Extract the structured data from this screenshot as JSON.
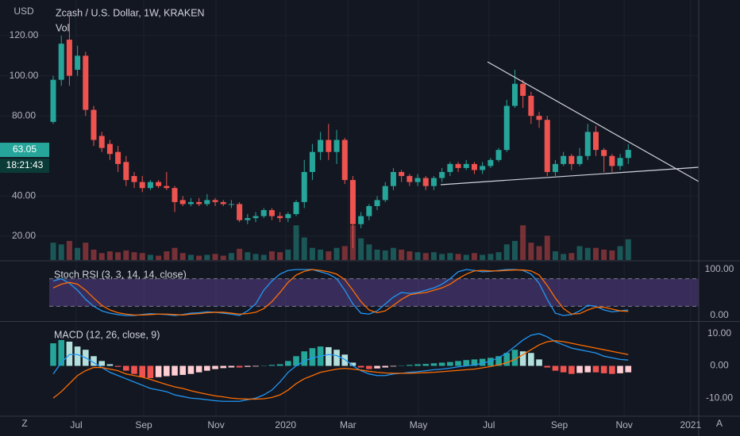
{
  "toolbar": {
    "timezone": "Z",
    "auto_scale": "A"
  },
  "chart_data": [
    {
      "type": "candlestick",
      "currency": "USD",
      "title": "Zcash / U.S. Dollar, 1W, KRAKEN",
      "volume_label": "Vol",
      "open": [
        77,
        98,
        118,
        103,
        110,
        83,
        70,
        66,
        62,
        57,
        50,
        47,
        44,
        47,
        45,
        44,
        38,
        36,
        37,
        36,
        38,
        37,
        36,
        36,
        28,
        29,
        30,
        33,
        30,
        29,
        31,
        37,
        52,
        62,
        68,
        62,
        68,
        48,
        26,
        30,
        35,
        38,
        45,
        52,
        50,
        47,
        49,
        45,
        49,
        52,
        56,
        54,
        56,
        53,
        55,
        58,
        63,
        85,
        96,
        90,
        80,
        78,
        52,
        56,
        60,
        56,
        60,
        72,
        63,
        60,
        55,
        59
      ],
      "high": [
        100,
        120,
        130,
        115,
        112,
        85,
        72,
        68,
        65,
        60,
        52,
        50,
        48,
        48,
        52,
        45,
        40,
        39,
        39,
        41,
        39,
        38,
        38,
        37,
        31,
        32,
        34,
        34,
        32,
        32,
        38,
        58,
        66,
        72,
        76,
        73,
        69,
        50,
        32,
        36,
        40,
        47,
        54,
        53,
        51,
        51,
        50,
        50,
        54,
        57,
        57,
        58,
        57,
        57,
        59,
        64,
        88,
        103,
        98,
        92,
        82,
        80,
        58,
        62,
        61,
        64,
        76,
        75,
        64,
        61,
        61,
        66
      ],
      "low": [
        76,
        95,
        95,
        100,
        80,
        65,
        62,
        58,
        52,
        45,
        44,
        42,
        43,
        44,
        43,
        32,
        35,
        35,
        35,
        35,
        35,
        35,
        34,
        27,
        26,
        27,
        29,
        28,
        27,
        27,
        30,
        34,
        48,
        58,
        58,
        56,
        46,
        14,
        24,
        28,
        33,
        37,
        43,
        47,
        45,
        45,
        43,
        43,
        47,
        50,
        52,
        53,
        51,
        51,
        54,
        57,
        62,
        84,
        84,
        76,
        74,
        50,
        50,
        55,
        53,
        55,
        58,
        60,
        52,
        52,
        53,
        56
      ],
      "close": [
        98,
        116,
        100,
        110,
        83,
        68,
        64,
        61,
        56,
        48,
        47,
        44,
        47,
        45,
        44,
        37,
        36,
        37,
        36,
        38,
        37,
        36,
        36,
        28,
        29,
        30,
        33,
        30,
        29,
        31,
        37,
        52,
        62,
        68,
        62,
        68,
        48,
        26,
        30,
        35,
        38,
        45,
        52,
        50,
        47,
        49,
        45,
        49,
        52,
        56,
        54,
        56,
        53,
        55,
        58,
        63,
        85,
        96,
        90,
        80,
        78,
        52,
        56,
        60,
        56,
        60,
        72,
        63,
        60,
        55,
        59,
        63.05
      ],
      "volume": [
        20,
        18,
        22,
        14,
        20,
        12,
        8,
        10,
        9,
        11,
        9,
        8,
        6,
        5,
        10,
        14,
        8,
        6,
        5,
        6,
        7,
        5,
        8,
        13,
        9,
        7,
        6,
        10,
        9,
        12,
        40,
        26,
        14,
        12,
        10,
        14,
        16,
        40,
        25,
        18,
        12,
        11,
        14,
        12,
        10,
        9,
        8,
        9,
        7,
        8,
        7,
        6,
        8,
        6,
        7,
        9,
        18,
        22,
        40,
        20,
        16,
        28,
        10,
        7,
        8,
        16,
        14,
        14,
        12,
        11,
        16,
        24
      ],
      "volume_ylim": [
        0,
        300
      ],
      "ylim": [
        8.1,
        137.8
      ],
      "yticks": [
        {
          "value": 20,
          "label": "20.00"
        },
        {
          "value": 40,
          "label": "40.00"
        },
        {
          "value": 80,
          "label": "80.00"
        },
        {
          "value": 100,
          "label": "100.00"
        },
        {
          "value": 120,
          "label": "120.00"
        }
      ],
      "last_price": 63.05,
      "countdown": "18:21:43",
      "up_color": "#26a69a",
      "down_color": "#ef5350",
      "grid": true
    },
    {
      "type": "oscillator",
      "title": "Stoch RSI (3, 3, 14, 14, close)",
      "series": [
        {
          "color": "#2196f3",
          "values": [
            75,
            80,
            70,
            55,
            35,
            20,
            10,
            5,
            2,
            0,
            0,
            2,
            4,
            3,
            2,
            0,
            2,
            5,
            6,
            8,
            7,
            5,
            3,
            0,
            10,
            25,
            55,
            75,
            90,
            98,
            100,
            100,
            100,
            95,
            90,
            80,
            55,
            25,
            5,
            3,
            10,
            25,
            40,
            50,
            48,
            50,
            55,
            60,
            68,
            80,
            95,
            100,
            98,
            95,
            96,
            98,
            100,
            100,
            98,
            90,
            70,
            35,
            5,
            0,
            2,
            10,
            22,
            20,
            12,
            8,
            10,
            12
          ]
        },
        {
          "color": "#ff6d00",
          "values": [
            60,
            68,
            72,
            68,
            55,
            38,
            22,
            12,
            6,
            3,
            1,
            1,
            2,
            3,
            3,
            2,
            1,
            3,
            4,
            6,
            7,
            7,
            5,
            3,
            4,
            7,
            15,
            30,
            50,
            72,
            88,
            96,
            100,
            98,
            95,
            90,
            78,
            55,
            30,
            12,
            6,
            10,
            22,
            35,
            45,
            48,
            50,
            55,
            60,
            68,
            80,
            90,
            97,
            98,
            97,
            97,
            98,
            99,
            99,
            97,
            88,
            65,
            38,
            15,
            3,
            4,
            12,
            18,
            18,
            14,
            10,
            9
          ]
        }
      ],
      "bands": [
        20,
        80
      ],
      "band_color": "#7e57c2",
      "ylim": [
        -12.1,
        117.2
      ],
      "yticks": [
        {
          "value": 100,
          "label": "100.00"
        },
        {
          "value": 0,
          "label": "0.00"
        }
      ]
    },
    {
      "type": "macd",
      "title": "MACD (12, 26, close, 9)",
      "histogram": [
        7,
        8,
        7.5,
        6,
        5,
        3,
        1.5,
        0.5,
        -0.3,
        -1.5,
        -2.5,
        -3.5,
        -3.8,
        -3.5,
        -3.2,
        -3,
        -2.8,
        -2.5,
        -2,
        -1.5,
        -1,
        -0.7,
        -0.5,
        -0.5,
        -0.3,
        -0.2,
        0.1,
        0.3,
        0.5,
        1.5,
        3,
        4.5,
        5.5,
        6,
        5.8,
        5,
        3.5,
        1,
        -0.5,
        -1,
        -0.8,
        -0.5,
        -0.2,
        0.1,
        0.3,
        0.5,
        0.6,
        0.8,
        1,
        1.2,
        1.5,
        1.8,
        2,
        2.2,
        2.5,
        3,
        4,
        5,
        4.5,
        4,
        2,
        -0.5,
        -1.5,
        -2,
        -2.5,
        -2.2,
        -2,
        -2,
        -2.3,
        -2.5,
        -2.3,
        -2
      ],
      "histogram_colors": {
        "up_rising": "#26a69a",
        "up_falling": "#b2dfdb",
        "down_falling": "#ef5350",
        "down_rising": "#ffcdd2"
      },
      "series": [
        {
          "color": "#2196f3",
          "values": [
            -2.5,
            1,
            3.5,
            3.5,
            2.5,
            1,
            -0.5,
            -2,
            -3,
            -4,
            -5,
            -6,
            -7,
            -7.5,
            -8,
            -9,
            -9.5,
            -10,
            -10.2,
            -10.5,
            -10.8,
            -11,
            -11,
            -11,
            -10.5,
            -10,
            -9,
            -7.5,
            -5,
            -2,
            0,
            1.5,
            2.5,
            3,
            3.5,
            3.2,
            2,
            0,
            -1.5,
            -2.5,
            -3,
            -3,
            -2.5,
            -2.3,
            -2,
            -1.8,
            -1.5,
            -1.2,
            -1,
            -0.7,
            -0.3,
            0,
            0.3,
            0.8,
            1.5,
            2.5,
            4,
            6,
            8,
            9.5,
            10,
            9,
            7.5,
            6.5,
            5.5,
            5,
            4.5,
            4,
            3,
            2.5,
            2,
            1.8
          ]
        },
        {
          "color": "#ff6d00",
          "values": [
            -10,
            -8,
            -5.5,
            -3,
            -1.5,
            -0.5,
            -0.5,
            -1,
            -1.5,
            -2.5,
            -3,
            -3.5,
            -4.2,
            -5,
            -5.8,
            -6.5,
            -7,
            -7.7,
            -8.3,
            -8.8,
            -9.3,
            -9.6,
            -10,
            -10.2,
            -10.3,
            -10.3,
            -10.2,
            -9.8,
            -9,
            -7.5,
            -5.5,
            -4,
            -3,
            -2,
            -1.5,
            -1,
            -0.8,
            -1,
            -1.3,
            -1.7,
            -2,
            -2.2,
            -2.3,
            -2.3,
            -2.3,
            -2.2,
            -2.1,
            -2,
            -1.8,
            -1.6,
            -1.4,
            -1.2,
            -1,
            -0.6,
            -0.2,
            0.3,
            1,
            2,
            3.5,
            5,
            6.5,
            7.5,
            7.8,
            7.5,
            7,
            6.5,
            6,
            5.5,
            5,
            4.5,
            4,
            3.5
          ]
        }
      ],
      "ylim": [
        -15.6,
        13.4
      ],
      "yticks": [
        {
          "value": 10,
          "label": "10.00"
        },
        {
          "value": 0,
          "label": "0.00"
        },
        {
          "value": -10,
          "label": "-10.00"
        }
      ],
      "xlim": [
        -6.57,
        79.7
      ],
      "xticks": [
        {
          "value": 2.84,
          "label": "Jul"
        },
        {
          "value": 11.18,
          "label": "Sep"
        },
        {
          "value": 20.1,
          "label": "Nov"
        },
        {
          "value": 28.7,
          "label": "2020"
        },
        {
          "value": 36.4,
          "label": "Mar"
        },
        {
          "value": 45.1,
          "label": "May"
        },
        {
          "value": 53.8,
          "label": "Jul"
        },
        {
          "value": 62.5,
          "label": "Sep"
        },
        {
          "value": 70.5,
          "label": "Nov"
        },
        {
          "value": 78.7,
          "label": "2021"
        }
      ]
    }
  ]
}
